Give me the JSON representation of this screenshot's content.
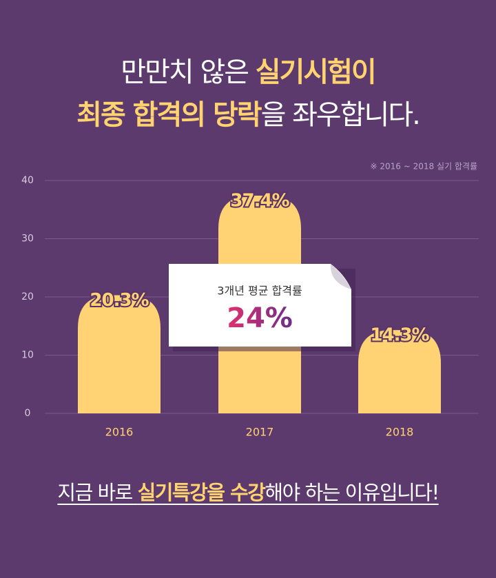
{
  "header": {
    "line1": [
      "만만치 않은 ",
      "실기시험이"
    ],
    "line2": [
      "최종 합격의 당락",
      "을 좌우합니다."
    ]
  },
  "chart_data": {
    "type": "bar",
    "note": "※ 2016 ~ 2018 실기 합격률",
    "categories": [
      "2016",
      "2017",
      "2018"
    ],
    "values": [
      20.3,
      37.4,
      14.3
    ],
    "value_labels": [
      "20.3%",
      "37.4%",
      "14.3%"
    ],
    "color": "#ffd373",
    "ylim": [
      0,
      40
    ],
    "yticks": [
      0,
      10,
      20,
      30,
      40
    ],
    "grid": true,
    "callout": {
      "text": "3개년 평균 합격률",
      "label": "24%"
    }
  },
  "footer": [
    "지금 바로 ",
    "실기특강을 수강",
    "해야 하는 이유입니다!"
  ]
}
